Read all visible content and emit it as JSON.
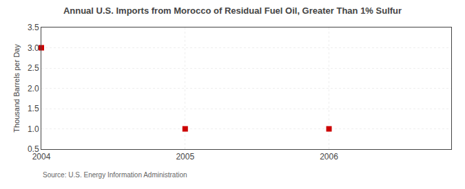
{
  "chart_data": {
    "type": "scatter",
    "title": "Annual U.S. Imports from Morocco of Residual Fuel Oil, Greater Than 1% Sulfur",
    "ylabel": "Thousand Barrels per Day",
    "annotations": [
      "Source: U.S. Energy Information Administration"
    ],
    "x": [
      2004,
      2005,
      2006
    ],
    "values": [
      3.0,
      1.0,
      1.0
    ],
    "color": "#CC0000",
    "marker": "square",
    "xlim": [
      2004.0,
      2006.85
    ],
    "xticks": [
      2004,
      2005,
      2006
    ],
    "ylim": [
      0.5,
      3.5
    ],
    "yticks": [
      0.5,
      {
        "value": 1.0,
        "label": "1.0"
      },
      1.5,
      {
        "value": 2.0,
        "label": "2.0"
      },
      2.5,
      {
        "value": 3.0,
        "label": "3.0"
      },
      3.5
    ],
    "grid": true
  }
}
